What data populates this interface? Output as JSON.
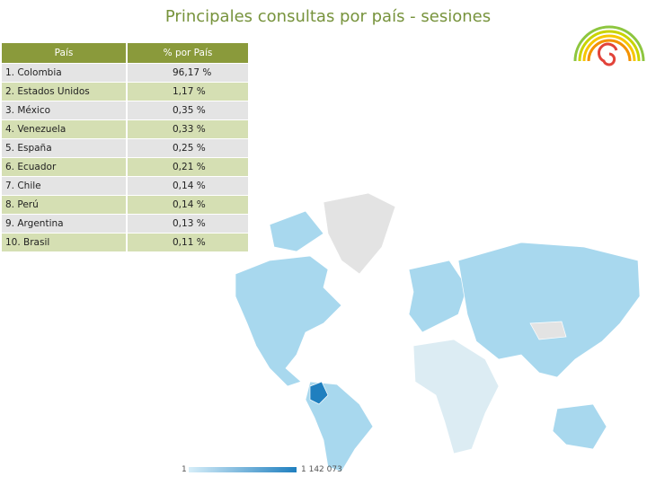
{
  "header": {
    "title": "Principales consultas por país - sesiones"
  },
  "table": {
    "columns": [
      "País",
      "% por País"
    ],
    "rows": [
      [
        "1. Colombia",
        "96,17 %"
      ],
      [
        "2. Estados Unidos",
        "1,17 %"
      ],
      [
        "3. México",
        "0,35 %"
      ],
      [
        "4. Venezuela",
        "0,33 %"
      ],
      [
        "5. España",
        "0,25 %"
      ],
      [
        "6. Ecuador",
        "0,21 %"
      ],
      [
        "7. Chile",
        "0,14 %"
      ],
      [
        "8. Perú",
        "0,14 %"
      ],
      [
        "9. Argentina",
        "0,13 %"
      ],
      [
        "10. Brasil",
        "0,11 %"
      ]
    ]
  },
  "map": {
    "legend": {
      "min": "1",
      "max": "1 142 073"
    }
  }
}
